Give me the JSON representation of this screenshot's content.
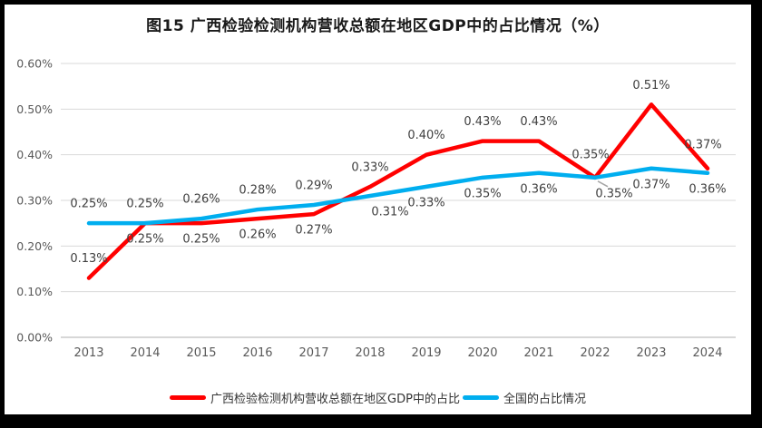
{
  "frame": {
    "border_color": "#000000",
    "background": "#FFFFFF"
  },
  "chart_data": {
    "type": "line",
    "title": "图15 广西检验检测机构营收总额在地区GDP中的占比情况（%）",
    "categories": [
      "2013",
      "2014",
      "2015",
      "2016",
      "2017",
      "2018",
      "2019",
      "2020",
      "2021",
      "2022",
      "2023",
      "2024"
    ],
    "xlabel": "",
    "ylabel": "",
    "y_axis": {
      "min": 0,
      "max": 0.6,
      "tick_step": 0.1,
      "ticks": [
        "0.00%",
        "0.10%",
        "0.20%",
        "0.30%",
        "0.40%",
        "0.50%",
        "0.60%"
      ]
    },
    "grid": true,
    "legend_position": "bottom",
    "series": [
      {
        "name": "广西检验检测机构营收总额在地区GDP中的占比",
        "color": "#FF0000",
        "values": [
          0.13,
          0.25,
          0.25,
          0.26,
          0.27,
          0.33,
          0.4,
          0.43,
          0.43,
          0.35,
          0.51,
          0.37
        ],
        "labels": [
          "0.13%",
          "0.25%",
          "0.25%",
          "0.26%",
          "0.27%",
          "0.33%",
          "0.40%",
          "0.43%",
          "0.43%",
          "0.35%",
          "0.51%",
          "0.37%"
        ],
        "label_positions": [
          "above",
          "below",
          "below",
          "below",
          "below",
          "above",
          "above",
          "above",
          "above",
          "callout-below",
          "above",
          "above"
        ]
      },
      {
        "name": "全国的占比情况",
        "color": "#00AEEF",
        "values": [
          0.25,
          0.25,
          0.26,
          0.28,
          0.29,
          0.31,
          0.33,
          0.35,
          0.36,
          0.35,
          0.37,
          0.36
        ],
        "labels": [
          "0.25%",
          "0.25%",
          "0.26%",
          "0.28%",
          "0.29%",
          "0.31%",
          "0.33%",
          "0.35%",
          "0.36%",
          "0.35%",
          "0.37%",
          "0.36%"
        ],
        "label_positions": [
          "above",
          "above",
          "above",
          "above",
          "above",
          "below",
          "below",
          "below",
          "below",
          "above",
          "below",
          "below"
        ]
      }
    ],
    "appearance": {
      "gridline_color": "#D9D9D9",
      "axis_line_color": "#BFBFBF",
      "axis_text_color": "#595959",
      "label_text_color": "#404040",
      "title_color": "#1A1A1A",
      "leader_line_color": "#A6A6A6"
    }
  }
}
